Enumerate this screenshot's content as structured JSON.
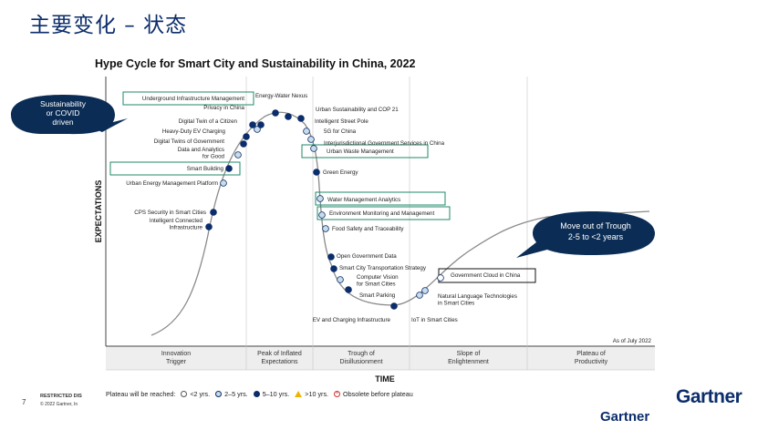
{
  "slide": {
    "title": "主要变化 – 状态",
    "page_number": "7",
    "restricted_label": "RESTRICTED DIS",
    "copyright": "© 2022 Gartner, In",
    "brand_inner": "Gartner",
    "brand_outer": "Gartner"
  },
  "callouts": {
    "left": [
      "Sustainability",
      "or COVID",
      "driven"
    ],
    "right": [
      "Move out of Trough",
      "2-5 to <2 years"
    ]
  },
  "chart_data": {
    "type": "scatter",
    "title": "Hype Cycle for Smart City and Sustainability in China, 2022",
    "xlabel": "TIME",
    "ylabel": "EXPECTATIONS",
    "note": "As of July 2022",
    "phases": [
      "Innovation\nTrigger",
      "Peak of Inflated\nExpectations",
      "Trough of\nDisillusionment",
      "Slope of\nEnlightenment",
      "Plateau of\nProductivity"
    ],
    "legend_title": "Plateau will be reached:",
    "legend": [
      {
        "label": "<2 yrs.",
        "key": "lt2",
        "color": "#ffffff"
      },
      {
        "label": "2–5 yrs.",
        "key": "2to5",
        "color": "#c9dcea"
      },
      {
        "label": "5–10 yrs.",
        "key": "5to10",
        "color": "#0b2d6b"
      },
      {
        "label": ">10 yrs.",
        "key": "gt10",
        "color": "#f0b400"
      },
      {
        "label": "Obsolete before plateau",
        "key": "obsolete",
        "color": "#d33333"
      }
    ],
    "highlighted": [
      "Underground Infrastructure Management",
      "Smart Building",
      "Urban Waste Management",
      "Water Management Analytics",
      "Environment Monitoring and Management",
      "Government Cloud in China"
    ],
    "technologies": [
      {
        "name": "Intelligent Connected\nInfrastructure",
        "plateau": "5to10"
      },
      {
        "name": "CPS Security in Smart Cities",
        "plateau": "5to10"
      },
      {
        "name": "Urban Energy Management Platform",
        "plateau": "2to5"
      },
      {
        "name": "Smart Building",
        "plateau": "5to10"
      },
      {
        "name": "Data and Analytics\nfor Good",
        "plateau": "2to5"
      },
      {
        "name": "Digital Twins of Government",
        "plateau": "5to10"
      },
      {
        "name": "Heavy-Duty EV Charging",
        "plateau": "5to10"
      },
      {
        "name": "Digital Twin of a Citizen",
        "plateau": "5to10"
      },
      {
        "name": "Privacy in China",
        "plateau": "2to5"
      },
      {
        "name": "Underground Infrastructure Management",
        "plateau": "5to10"
      },
      {
        "name": "Energy-Water Nexus",
        "plateau": "5to10"
      },
      {
        "name": "Urban Sustainability and COP 21",
        "plateau": "5to10"
      },
      {
        "name": "Intelligent Street Pole",
        "plateau": "5to10"
      },
      {
        "name": "5G for China",
        "plateau": "2to5"
      },
      {
        "name": "Interjurisdictional Government Services in China",
        "plateau": "2to5"
      },
      {
        "name": "Urban Waste Management",
        "plateau": "2to5"
      },
      {
        "name": "Green Energy",
        "plateau": "5to10"
      },
      {
        "name": "Water Management Analytics",
        "plateau": "2to5"
      },
      {
        "name": "Environment Monitoring and Management",
        "plateau": "2to5"
      },
      {
        "name": "Food Safety and Traceability",
        "plateau": "2to5"
      },
      {
        "name": "Open Government Data",
        "plateau": "5to10"
      },
      {
        "name": "Smart City Transportation Strategy",
        "plateau": "5to10"
      },
      {
        "name": "Computer Vision\nfor Smart Cities",
        "plateau": "2to5"
      },
      {
        "name": "Smart Parking",
        "plateau": "5to10"
      },
      {
        "name": "EV and Charging Infrastructure",
        "plateau": "5to10"
      },
      {
        "name": "IoT in Smart Cities",
        "plateau": "2to5"
      },
      {
        "name": "Natural Language Technologies\nin Smart Cities",
        "plateau": "2to5"
      },
      {
        "name": "Government Cloud in China",
        "plateau": "lt2"
      }
    ]
  }
}
